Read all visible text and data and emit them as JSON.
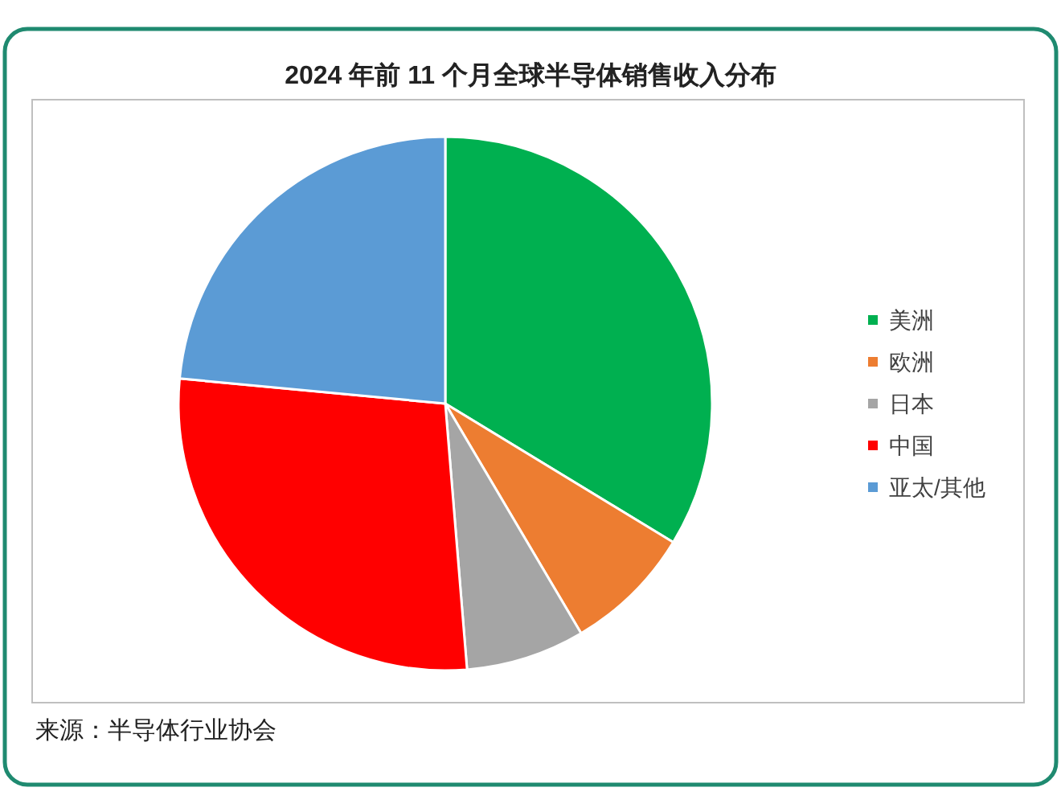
{
  "chart_data": {
    "type": "pie",
    "title": "2024 年前 11 个月全球半导体销售收入分布",
    "categories": [
      "美洲",
      "欧洲",
      "日本",
      "中国",
      "亚太/其他"
    ],
    "values": [
      33.7,
      7.8,
      7.2,
      27.8,
      23.5
    ],
    "colors": [
      "#00b050",
      "#ed7d31",
      "#a5a5a5",
      "#ff0000",
      "#5b9bd5"
    ],
    "legend": "right",
    "annotations": [
      "来源：半导体行业协会"
    ]
  }
}
